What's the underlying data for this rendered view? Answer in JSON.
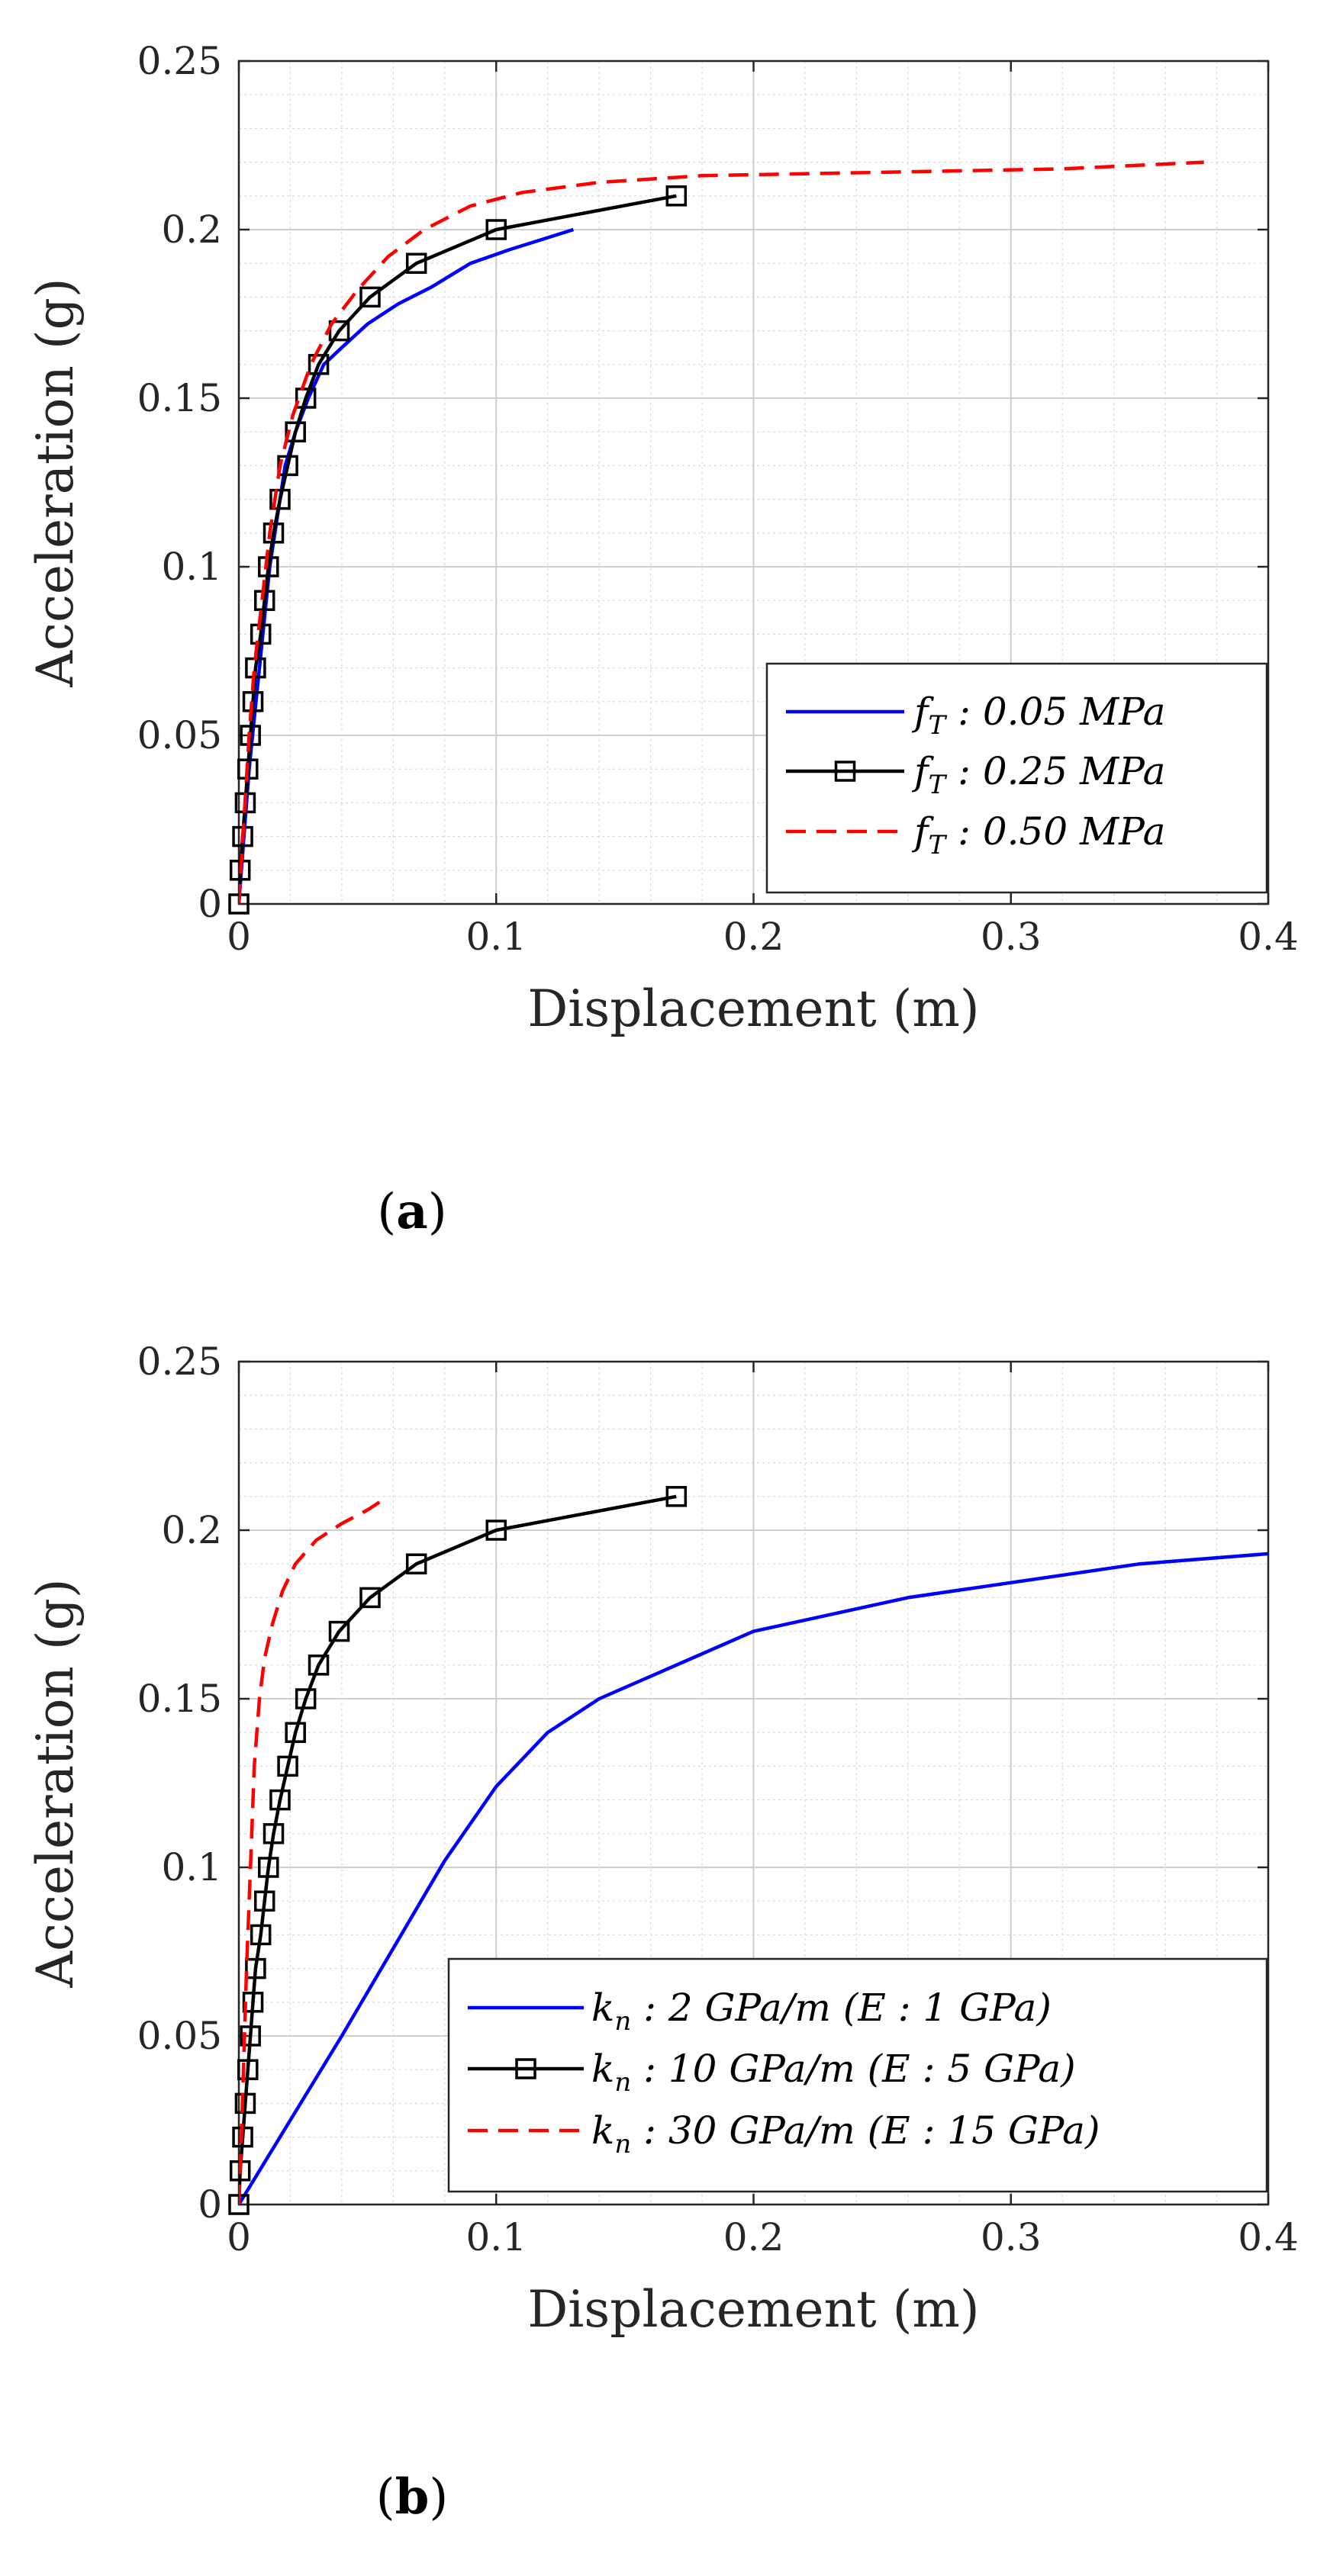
{
  "chart_data": [
    {
      "type": "line",
      "panel_label": "a",
      "xlabel": "Displacement (m)",
      "ylabel": "Acceleration (g)",
      "xlim": [
        0,
        0.4
      ],
      "ylim": [
        0,
        0.25
      ],
      "xticks": [
        "0",
        "0.1",
        "0.2",
        "0.3",
        "0.4"
      ],
      "yticks": [
        "0",
        "0.05",
        "0.1",
        "0.15",
        "0.2",
        "0.25"
      ],
      "grid": true,
      "legend_position": "bottom-right",
      "series": [
        {
          "name": "f_T : 0.05 MPa",
          "color": "#0000ff",
          "style": "solid",
          "marker": "none",
          "x": [
            0,
            0.002,
            0.004,
            0.006,
            0.008,
            0.01,
            0.012,
            0.015,
            0.018,
            0.022,
            0.027,
            0.033,
            0.04,
            0.05,
            0.062,
            0.075,
            0.09,
            0.105,
            0.13
          ],
          "y": [
            0,
            0.02,
            0.04,
            0.055,
            0.07,
            0.085,
            0.1,
            0.115,
            0.13,
            0.14,
            0.15,
            0.16,
            0.165,
            0.172,
            0.178,
            0.183,
            0.19,
            0.194,
            0.2
          ]
        },
        {
          "name": "f_T : 0.25 MPa",
          "color": "#000000",
          "style": "solid",
          "marker": "square",
          "x": [
            0,
            0.0005,
            0.0015,
            0.0025,
            0.0035,
            0.0045,
            0.0055,
            0.0065,
            0.0085,
            0.01,
            0.0115,
            0.0135,
            0.016,
            0.019,
            0.022,
            0.026,
            0.031,
            0.039,
            0.051,
            0.069,
            0.1,
            0.17
          ],
          "y": [
            0,
            0.01,
            0.02,
            0.03,
            0.04,
            0.05,
            0.06,
            0.07,
            0.08,
            0.09,
            0.1,
            0.11,
            0.12,
            0.13,
            0.14,
            0.15,
            0.16,
            0.17,
            0.18,
            0.19,
            0.2,
            0.21
          ]
        },
        {
          "name": "f_T : 0.50 MPa",
          "color": "#ff0000",
          "style": "dashed",
          "marker": "none",
          "x": [
            0,
            0.002,
            0.004,
            0.006,
            0.009,
            0.012,
            0.016,
            0.021,
            0.028,
            0.036,
            0.046,
            0.058,
            0.072,
            0.09,
            0.11,
            0.14,
            0.18,
            0.25,
            0.32,
            0.375
          ],
          "y": [
            0,
            0.025,
            0.05,
            0.07,
            0.09,
            0.11,
            0.13,
            0.145,
            0.16,
            0.172,
            0.182,
            0.192,
            0.2,
            0.207,
            0.211,
            0.214,
            0.216,
            0.217,
            0.218,
            0.22
          ]
        }
      ]
    },
    {
      "type": "line",
      "panel_label": "b",
      "xlabel": "Displacement (m)",
      "ylabel": "Acceleration (g)",
      "xlim": [
        0,
        0.4
      ],
      "ylim": [
        0,
        0.25
      ],
      "xticks": [
        "0",
        "0.1",
        "0.2",
        "0.3",
        "0.4"
      ],
      "yticks": [
        "0",
        "0.05",
        "0.1",
        "0.15",
        "0.2",
        "0.25"
      ],
      "grid": true,
      "legend_position": "bottom-right",
      "series": [
        {
          "name": "k_n : 2 GPa/m (E : 1 GPa)",
          "color": "#0000ff",
          "style": "solid",
          "marker": "none",
          "x": [
            0,
            0.02,
            0.04,
            0.06,
            0.08,
            0.1,
            0.12,
            0.14,
            0.17,
            0.2,
            0.26,
            0.35,
            0.4
          ],
          "y": [
            0,
            0.025,
            0.05,
            0.076,
            0.102,
            0.124,
            0.14,
            0.15,
            0.16,
            0.17,
            0.18,
            0.19,
            0.193
          ]
        },
        {
          "name": "k_n : 10 GPa/m (E : 5 GPa)",
          "color": "#000000",
          "style": "solid",
          "marker": "square",
          "x": [
            0,
            0.0005,
            0.0015,
            0.0025,
            0.0035,
            0.0045,
            0.0055,
            0.0065,
            0.0085,
            0.01,
            0.0115,
            0.0135,
            0.016,
            0.019,
            0.022,
            0.026,
            0.031,
            0.039,
            0.051,
            0.069,
            0.1,
            0.17
          ],
          "y": [
            0,
            0.01,
            0.02,
            0.03,
            0.04,
            0.05,
            0.06,
            0.07,
            0.08,
            0.09,
            0.1,
            0.11,
            0.12,
            0.13,
            0.14,
            0.15,
            0.16,
            0.17,
            0.18,
            0.19,
            0.2,
            0.21
          ]
        },
        {
          "name": "k_n : 30 GPa/m (E : 15 GPa)",
          "color": "#ff0000",
          "style": "dashed",
          "marker": "none",
          "x": [
            0,
            0.001,
            0.002,
            0.003,
            0.004,
            0.005,
            0.006,
            0.008,
            0.01,
            0.013,
            0.017,
            0.022,
            0.03,
            0.04,
            0.05,
            0.058
          ],
          "y": [
            0,
            0.02,
            0.045,
            0.07,
            0.09,
            0.11,
            0.13,
            0.15,
            0.162,
            0.172,
            0.182,
            0.19,
            0.197,
            0.202,
            0.206,
            0.21
          ]
        }
      ]
    }
  ],
  "legend_text": {
    "a": [
      {
        "var": "f",
        "sub": "T",
        "rest": ": 0.05 MPa"
      },
      {
        "var": "f",
        "sub": "T",
        "rest": ": 0.25 MPa"
      },
      {
        "var": "f",
        "sub": "T",
        "rest": ": 0.50 MPa"
      }
    ],
    "b": [
      {
        "var": "k",
        "sub": "n",
        "rest": ":  2 GPa/m (E :  1 GPa)"
      },
      {
        "var": "k",
        "sub": "n",
        "rest": ": 10 GPa/m (E :  5 GPa)"
      },
      {
        "var": "k",
        "sub": "n",
        "rest": ": 30 GPa/m (E : 15 GPa)"
      }
    ]
  }
}
